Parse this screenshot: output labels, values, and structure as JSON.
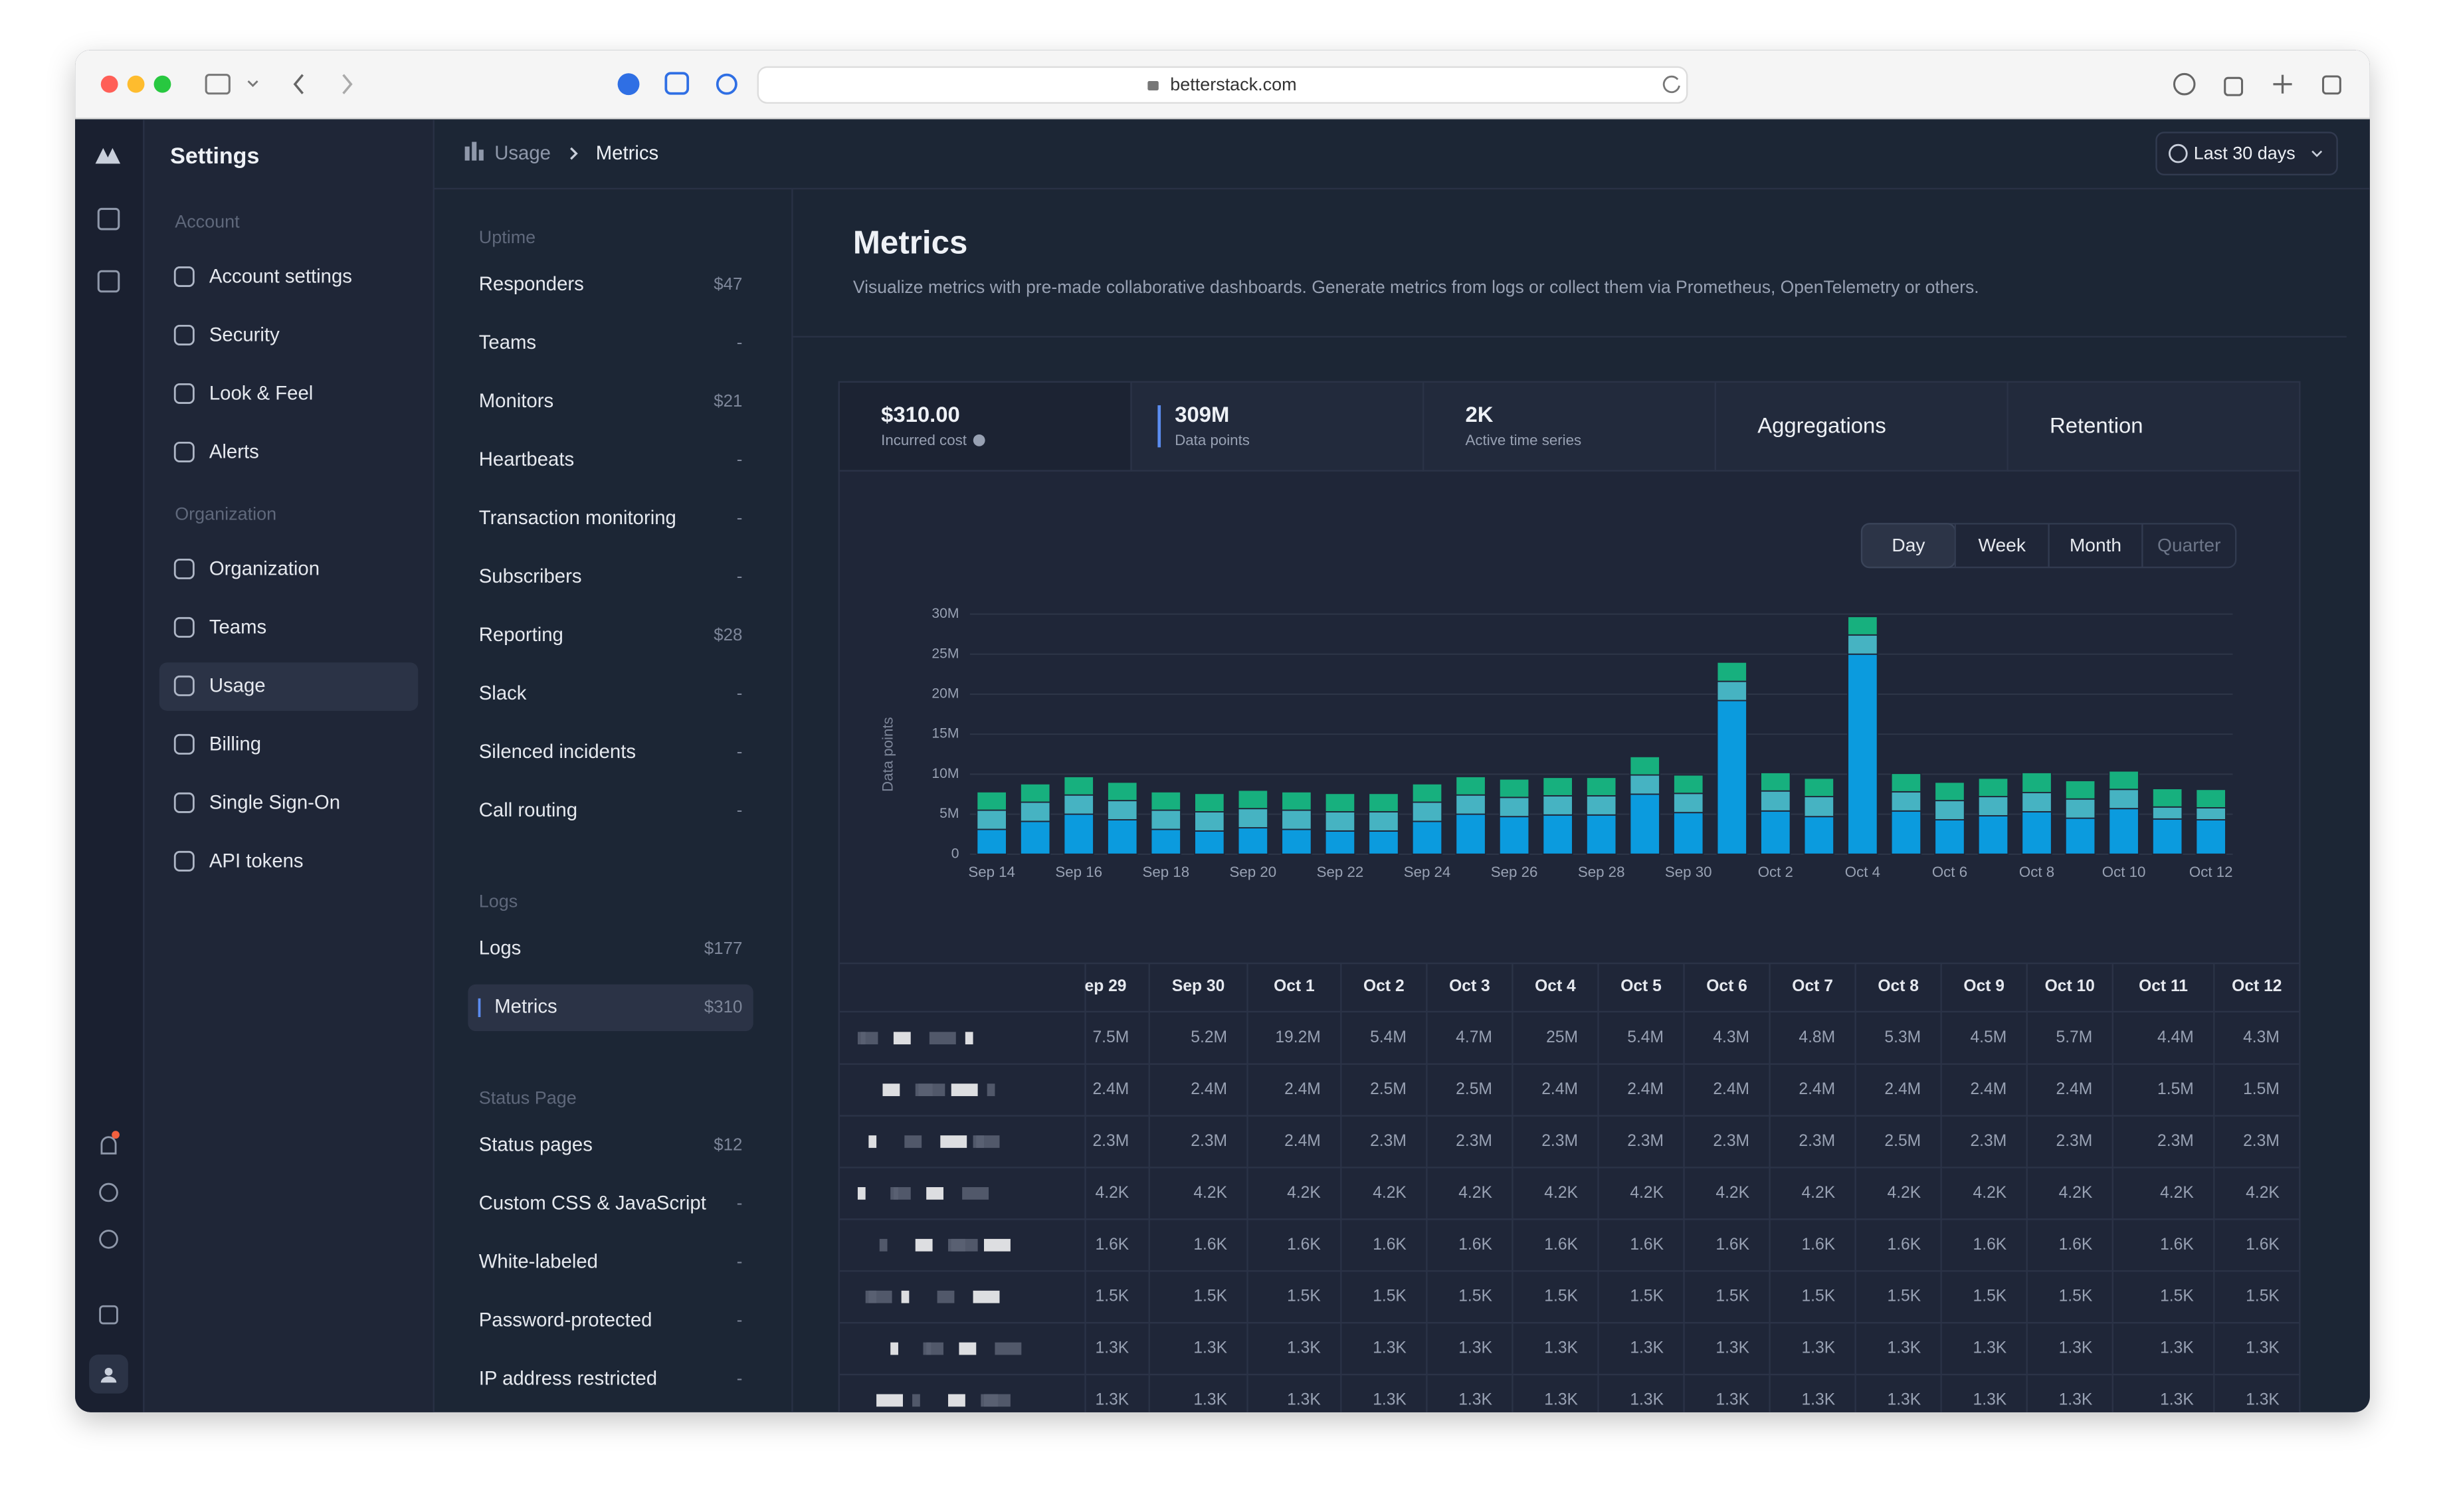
{
  "browser": {
    "url": "betterstack.com"
  },
  "sidebar": {
    "title": "Settings",
    "sections": [
      {
        "heading": "Account",
        "items": [
          {
            "label": "Account settings"
          },
          {
            "label": "Security"
          },
          {
            "label": "Look & Feel"
          },
          {
            "label": "Alerts"
          }
        ]
      },
      {
        "heading": "Organization",
        "items": [
          {
            "label": "Organization"
          },
          {
            "label": "Teams"
          },
          {
            "label": "Usage",
            "active": true
          },
          {
            "label": "Billing"
          },
          {
            "label": "Single Sign-On"
          },
          {
            "label": "API tokens"
          }
        ]
      }
    ]
  },
  "breadcrumb": [
    "Usage",
    "Metrics"
  ],
  "date_range": "Last 30 days",
  "usage_nav": [
    {
      "heading": "Uptime",
      "items": [
        {
          "label": "Responders",
          "price": "$47"
        },
        {
          "label": "Teams",
          "price": "-"
        },
        {
          "label": "Monitors",
          "price": "$21"
        },
        {
          "label": "Heartbeats",
          "price": "-"
        },
        {
          "label": "Transaction monitoring",
          "price": "-"
        },
        {
          "label": "Subscribers",
          "price": "-"
        },
        {
          "label": "Reporting",
          "price": "$28"
        },
        {
          "label": "Slack",
          "price": "-"
        },
        {
          "label": "Silenced incidents",
          "price": "-"
        },
        {
          "label": "Call routing",
          "price": "-"
        }
      ]
    },
    {
      "heading": "Logs",
      "items": [
        {
          "label": "Logs",
          "price": "$177"
        },
        {
          "label": "Metrics",
          "price": "$310",
          "active": true
        }
      ]
    },
    {
      "heading": "Status Page",
      "items": [
        {
          "label": "Status pages",
          "price": "$12"
        },
        {
          "label": "Custom CSS & JavaScript",
          "price": "-"
        },
        {
          "label": "White-labeled",
          "price": "-"
        },
        {
          "label": "Password-protected",
          "price": "-"
        },
        {
          "label": "IP address restricted",
          "price": "-"
        }
      ]
    }
  ],
  "page": {
    "title": "Metrics",
    "description": "Visualize metrics with pre-made collaborative dashboards. Generate metrics from logs or collect them via Prometheus, OpenTelemetry or others."
  },
  "summary_tabs": [
    {
      "value": "$310.00",
      "label": "Incurred cost"
    },
    {
      "value": "309M",
      "label": "Data points",
      "active": true
    },
    {
      "value": "2K",
      "label": "Active time series"
    },
    {
      "label": "Aggregations"
    },
    {
      "label": "Retention"
    }
  ],
  "period_toggle": {
    "options": [
      "Day",
      "Week",
      "Month",
      "Quarter"
    ],
    "selected": 0
  },
  "chart_data": {
    "type": "stacked-bar",
    "y_label": "Data points",
    "categories": [
      "Sep 14",
      null,
      "Sep 16",
      null,
      "Sep 18",
      null,
      "Sep 20",
      null,
      "Sep 22",
      null,
      "Sep 24",
      null,
      "Sep 26",
      null,
      "Sep 28",
      null,
      "Sep 30",
      null,
      "Oct 2",
      null,
      "Oct 4",
      null,
      "Oct 6",
      null,
      "Oct 8",
      null,
      "Oct 10",
      null,
      "Oct 12"
    ],
    "series": [
      {
        "color": "#0b9bde",
        "values": [
          3.1,
          4.1,
          5.0,
          4.3,
          3.1,
          2.9,
          3.3,
          3.1,
          2.9,
          2.9,
          4.1,
          5.0,
          4.7,
          4.9,
          4.9,
          7.5,
          5.2,
          19.2,
          5.4,
          4.7,
          25,
          5.4,
          4.3,
          4.8,
          5.3,
          4.5,
          5.7,
          4.4,
          4.3
        ]
      },
      {
        "color": "#46b3c2",
        "values": [
          2.4,
          2.4,
          2.4,
          2.4,
          2.4,
          2.4,
          2.4,
          2.4,
          2.4,
          2.4,
          2.4,
          2.4,
          2.4,
          2.4,
          2.4,
          2.4,
          2.4,
          2.4,
          2.5,
          2.5,
          2.4,
          2.4,
          2.4,
          2.4,
          2.4,
          2.4,
          2.4,
          1.5,
          1.5
        ]
      },
      {
        "color": "#17b07e",
        "values": [
          2.3,
          2.3,
          2.3,
          2.3,
          2.3,
          2.3,
          2.3,
          2.3,
          2.3,
          2.3,
          2.3,
          2.3,
          2.3,
          2.3,
          2.3,
          2.3,
          2.3,
          2.4,
          2.3,
          2.3,
          2.3,
          2.3,
          2.3,
          2.3,
          2.5,
          2.3,
          2.3,
          2.3,
          2.3
        ]
      }
    ],
    "ylim": [
      0,
      30
    ],
    "yticks": [
      0,
      {
        "value": 5,
        "label": "5M"
      },
      {
        "value": 10,
        "label": "10M"
      },
      {
        "value": 15,
        "label": "15M"
      },
      {
        "value": 20,
        "label": "20M"
      },
      {
        "value": 25,
        "label": "25M"
      },
      {
        "value": 30,
        "label": "30M"
      }
    ],
    "grid": true
  },
  "table": {
    "columns": [
      "ep 29",
      "Sep 30",
      "Oct 1",
      "Oct 2",
      "Oct 3",
      "Oct 4",
      "Oct 5",
      "Oct 6",
      "Oct 7",
      "Oct 8",
      "Oct 9",
      "Oct 10",
      "Oct 11",
      "Oct 12"
    ],
    "rows": [
      [
        "7.5M",
        "5.2M",
        "19.2M",
        "5.4M",
        "4.7M",
        "25M",
        "5.4M",
        "4.3M",
        "4.8M",
        "5.3M",
        "4.5M",
        "5.7M",
        "4.4M",
        "4.3M"
      ],
      [
        "2.4M",
        "2.4M",
        "2.4M",
        "2.5M",
        "2.5M",
        "2.4M",
        "2.4M",
        "2.4M",
        "2.4M",
        "2.4M",
        "2.4M",
        "2.4M",
        "1.5M",
        "1.5M"
      ],
      [
        "2.3M",
        "2.3M",
        "2.4M",
        "2.3M",
        "2.3M",
        "2.3M",
        "2.3M",
        "2.3M",
        "2.3M",
        "2.5M",
        "2.3M",
        "2.3M",
        "2.3M",
        "2.3M"
      ],
      [
        "4.2K",
        "4.2K",
        "4.2K",
        "4.2K",
        "4.2K",
        "4.2K",
        "4.2K",
        "4.2K",
        "4.2K",
        "4.2K",
        "4.2K",
        "4.2K",
        "4.2K",
        "4.2K"
      ],
      [
        "1.6K",
        "1.6K",
        "1.6K",
        "1.6K",
        "1.6K",
        "1.6K",
        "1.6K",
        "1.6K",
        "1.6K",
        "1.6K",
        "1.6K",
        "1.6K",
        "1.6K",
        "1.6K"
      ],
      [
        "1.5K",
        "1.5K",
        "1.5K",
        "1.5K",
        "1.5K",
        "1.5K",
        "1.5K",
        "1.5K",
        "1.5K",
        "1.5K",
        "1.5K",
        "1.5K",
        "1.5K",
        "1.5K"
      ],
      [
        "1.3K",
        "1.3K",
        "1.3K",
        "1.3K",
        "1.3K",
        "1.3K",
        "1.3K",
        "1.3K",
        "1.3K",
        "1.3K",
        "1.3K",
        "1.3K",
        "1.3K",
        "1.3K"
      ],
      [
        "1.3K",
        "1.3K",
        "1.3K",
        "1.3K",
        "1.3K",
        "1.3K",
        "1.3K",
        "1.3K",
        "1.3K",
        "1.3K",
        "1.3K",
        "1.3K",
        "1.3K",
        "1.3K"
      ]
    ]
  }
}
